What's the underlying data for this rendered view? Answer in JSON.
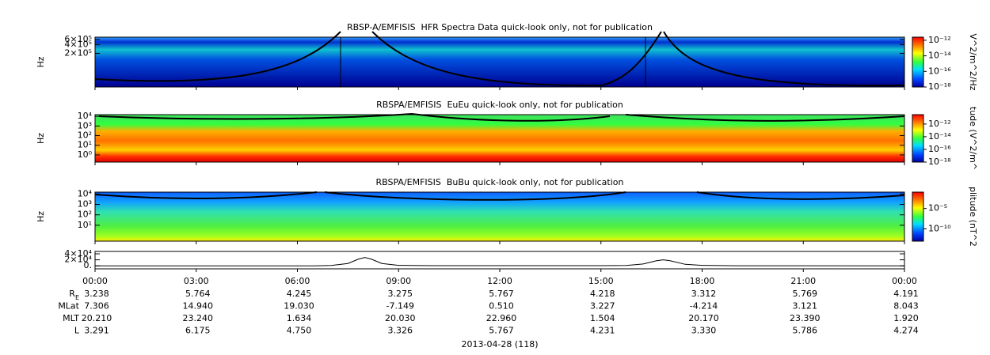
{
  "chart_data": [
    {
      "type": "spectrogram",
      "title": "RBSP-A/EMFISIS  HFR Spectra Data quick-look only, not for publication",
      "ylabel": "Hz",
      "yscale": "log",
      "ylim": [
        14000,
        720000
      ],
      "yticks": [
        {
          "value": 200000,
          "label": "2×10⁵"
        },
        {
          "value": 400000,
          "label": "4×10⁵"
        },
        {
          "value": 600000,
          "label": "6×10⁵"
        }
      ],
      "colorbar": {
        "label": "V^2/m^2/Hz",
        "lim": [
          1e-18,
          2.5e-12
        ],
        "ticks": [
          {
            "value": 1e-18,
            "label": "10⁻¹⁸"
          },
          {
            "value": 1e-16,
            "label": "10⁻¹⁶"
          },
          {
            "value": 1e-14,
            "label": "10⁻¹⁴"
          },
          {
            "value": 1e-12,
            "label": "10⁻¹²"
          }
        ]
      }
    },
    {
      "type": "spectrogram",
      "title": "RBSPA/EMFISIS  EuEu quick-look only, not for publication",
      "ylabel": "Hz",
      "yscale": "log",
      "ylim": [
        0.18,
        15000
      ],
      "yticks": [
        {
          "value": 1,
          "label": "10⁰"
        },
        {
          "value": 10,
          "label": "10¹"
        },
        {
          "value": 100,
          "label": "10²"
        },
        {
          "value": 1000,
          "label": "10³"
        },
        {
          "value": 10000,
          "label": "10⁴"
        }
      ],
      "colorbar": {
        "label": "tude (V^2/m^",
        "lim": [
          1e-18,
          3e-11
        ],
        "ticks": [
          {
            "value": 1e-18,
            "label": "10⁻¹⁸"
          },
          {
            "value": 1e-16,
            "label": "10⁻¹⁶"
          },
          {
            "value": 1e-14,
            "label": "10⁻¹⁴"
          },
          {
            "value": 1e-12,
            "label": "10⁻¹²"
          }
        ]
      }
    },
    {
      "type": "spectrogram",
      "title": "RBSPA/EMFISIS  BuBu quick-look only, not for publication",
      "ylabel": "Hz",
      "yscale": "log",
      "ylim": [
        0.3,
        15000
      ],
      "yticks": [
        {
          "value": 10,
          "label": "10¹"
        },
        {
          "value": 100,
          "label": "10²"
        },
        {
          "value": 1000,
          "label": "10³"
        },
        {
          "value": 10000,
          "label": "10⁴"
        }
      ],
      "colorbar": {
        "label": "plitude (nT^2",
        "lim": [
          1e-13,
          0.1
        ],
        "ticks": [
          {
            "value": 1e-10,
            "label": "10⁻¹⁰"
          },
          {
            "value": 1e-05,
            "label": "10⁻⁵"
          }
        ]
      }
    },
    {
      "type": "line",
      "ylim": [
        -10000,
        48000
      ],
      "yticks": [
        {
          "value": 0,
          "label": "0."
        },
        {
          "value": 20000,
          "label": "2×10⁴"
        },
        {
          "value": 40000,
          "label": "4×10⁴"
        }
      ],
      "xlim": [
        0,
        24
      ],
      "xticks": [
        {
          "value": 0,
          "label": "00:00"
        },
        {
          "value": 3,
          "label": "03:00"
        },
        {
          "value": 6,
          "label": "06:00"
        },
        {
          "value": 9,
          "label": "09:00"
        },
        {
          "value": 12,
          "label": "12:00"
        },
        {
          "value": 15,
          "label": "15:00"
        },
        {
          "value": 18,
          "label": "18:00"
        },
        {
          "value": 21,
          "label": "21:00"
        },
        {
          "value": 24,
          "label": "00:00"
        }
      ],
      "xlabel": "2013-04-28 (118)",
      "color": "#000000",
      "x": [
        0,
        6.5,
        7,
        7.5,
        7.8,
        8,
        8.2,
        8.5,
        9,
        10,
        15,
        15.75,
        16.25,
        16.65,
        16.85,
        17.05,
        17.5,
        18,
        19,
        24
      ],
      "values": [
        0,
        0,
        1000,
        8000,
        22000,
        28000,
        22000,
        8000,
        1500,
        500,
        500,
        1000,
        6000,
        17000,
        20000,
        17000,
        5000,
        1500,
        300,
        0
      ]
    }
  ],
  "ephemeris": [
    {
      "label": "R",
      "sub": "E",
      "values": [
        "3.238",
        "5.764",
        "4.245",
        "3.275",
        "5.767",
        "4.218",
        "3.312",
        "5.769",
        "4.191"
      ]
    },
    {
      "label": "MLat",
      "values": [
        "7.306",
        "14.940",
        "19.030",
        "-7.149",
        "0.510",
        "3.227",
        "-4.214",
        "3.121",
        "8.043"
      ]
    },
    {
      "label": "MLT",
      "values": [
        "20.210",
        "23.240",
        "1.634",
        "20.030",
        "22.960",
        "1.504",
        "20.170",
        "23.390",
        "1.920"
      ]
    },
    {
      "label": "L",
      "values": [
        "3.291",
        "6.175",
        "4.750",
        "3.326",
        "5.767",
        "4.231",
        "3.330",
        "5.786",
        "4.274"
      ]
    }
  ]
}
